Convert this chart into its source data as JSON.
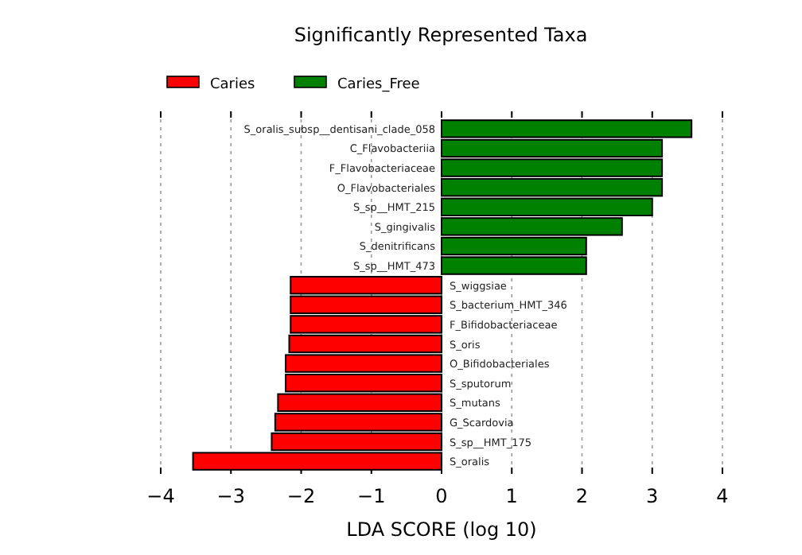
{
  "chart_data": {
    "type": "bar",
    "orientation": "horizontal",
    "title": "Significantly Represented Taxa",
    "xlabel": "LDA SCORE (log 10)",
    "categories": [
      "S_oralis_subsp__dentisani_clade_058",
      "C_Flavobacteriia",
      "F_Flavobacteriaceae",
      "O_Flavobacteriales",
      "S_sp__HMT_215",
      "S_gingivalis",
      "S_denitrificans",
      "S_sp__HMT_473",
      "S_wiggsiae",
      "S_bacterium_HMT_346",
      "F_Bifidobacteriaceae",
      "S_oris",
      "O_Bifidobacteriales",
      "S_sputorum",
      "S_mutans",
      "G_Scardovia",
      "S_sp__HMT_175",
      "S_oralis"
    ],
    "series": [
      {
        "name": "Caries",
        "color": "#ff0000",
        "values": [
          null,
          null,
          null,
          null,
          null,
          null,
          null,
          null,
          -2.15,
          -2.15,
          -2.15,
          -2.17,
          -2.22,
          -2.22,
          -2.33,
          -2.37,
          -2.42,
          -3.54
        ]
      },
      {
        "name": "Caries_Free",
        "color": "#008000",
        "values": [
          3.56,
          3.14,
          3.14,
          3.14,
          3.0,
          2.57,
          2.06,
          2.06,
          null,
          null,
          null,
          null,
          null,
          null,
          null,
          null,
          null,
          null
        ]
      }
    ],
    "xlim": [
      -4,
      4
    ],
    "xticks": [
      {
        "value": -4,
        "label": "−4"
      },
      {
        "value": -3,
        "label": "−3"
      },
      {
        "value": -2,
        "label": "−2"
      },
      {
        "value": -1,
        "label": "−1"
      },
      0,
      1,
      2,
      3,
      4
    ],
    "grid": "x",
    "legend": "top left",
    "tick_labels": "x"
  }
}
